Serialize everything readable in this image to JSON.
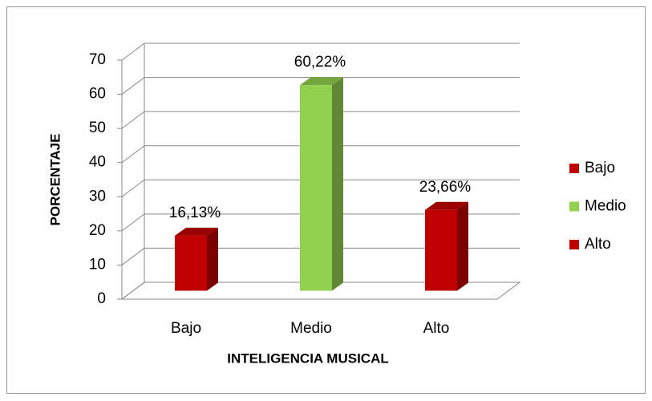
{
  "chart_data": {
    "type": "bar3d",
    "categories": [
      "Bajo",
      "Medio",
      "Alto"
    ],
    "values": [
      16.13,
      60.22,
      23.66
    ],
    "value_labels": [
      "16,13%",
      "60,22%",
      "23,66%"
    ],
    "colors": [
      "#c00000",
      "#92d050",
      "#c00000"
    ],
    "x_label": "INTELIGENCIA MUSICAL",
    "y_label": "PORCENTAJE",
    "ylim": [
      0,
      70
    ],
    "yticks": [
      0,
      10,
      20,
      30,
      40,
      50,
      60,
      70
    ],
    "grid": true,
    "legend": "right"
  }
}
